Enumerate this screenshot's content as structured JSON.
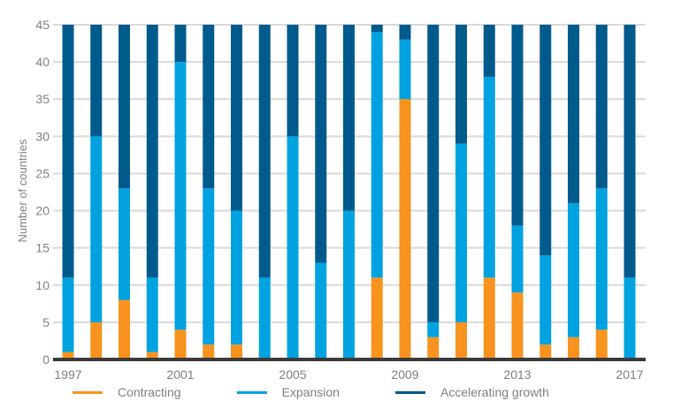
{
  "chart_data": {
    "type": "bar",
    "stacked": true,
    "ylabel": "Number of countries",
    "xlabel": "",
    "ylim": [
      0,
      45
    ],
    "yticks": [
      0,
      5,
      10,
      15,
      20,
      25,
      30,
      35,
      40,
      45
    ],
    "grid": true,
    "legend_position": "bottom",
    "categories": [
      "1997",
      "1998",
      "1999",
      "2000",
      "2001",
      "2002",
      "2003",
      "2004",
      "2005",
      "2006",
      "2007",
      "2008",
      "2009",
      "2010",
      "2011",
      "2012",
      "2013",
      "2014",
      "2015",
      "2016",
      "2017"
    ],
    "x_tick_labels": [
      "1997",
      "",
      "",
      "",
      "2001",
      "",
      "",
      "",
      "2005",
      "",
      "",
      "",
      "2009",
      "",
      "",
      "",
      "2013",
      "",
      "",
      "",
      "2017"
    ],
    "series": [
      {
        "name": "Contracting",
        "color": "#f7931e",
        "values": [
          1,
          5,
          8,
          1,
          4,
          2,
          2,
          0,
          0,
          0,
          0,
          11,
          35,
          3,
          5,
          11,
          9,
          2,
          3,
          4,
          0
        ]
      },
      {
        "name": "Expansion",
        "color": "#00a3e0",
        "values": [
          10,
          25,
          15,
          10,
          36,
          21,
          18,
          11,
          30,
          13,
          20,
          33,
          8,
          2,
          24,
          27,
          9,
          12,
          18,
          19,
          11
        ]
      },
      {
        "name": "Accelerating growth",
        "color": "#005a8c",
        "values": [
          34,
          15,
          22,
          34,
          5,
          22,
          25,
          34,
          15,
          32,
          25,
          1,
          2,
          40,
          16,
          7,
          27,
          31,
          24,
          22,
          34
        ]
      }
    ]
  }
}
